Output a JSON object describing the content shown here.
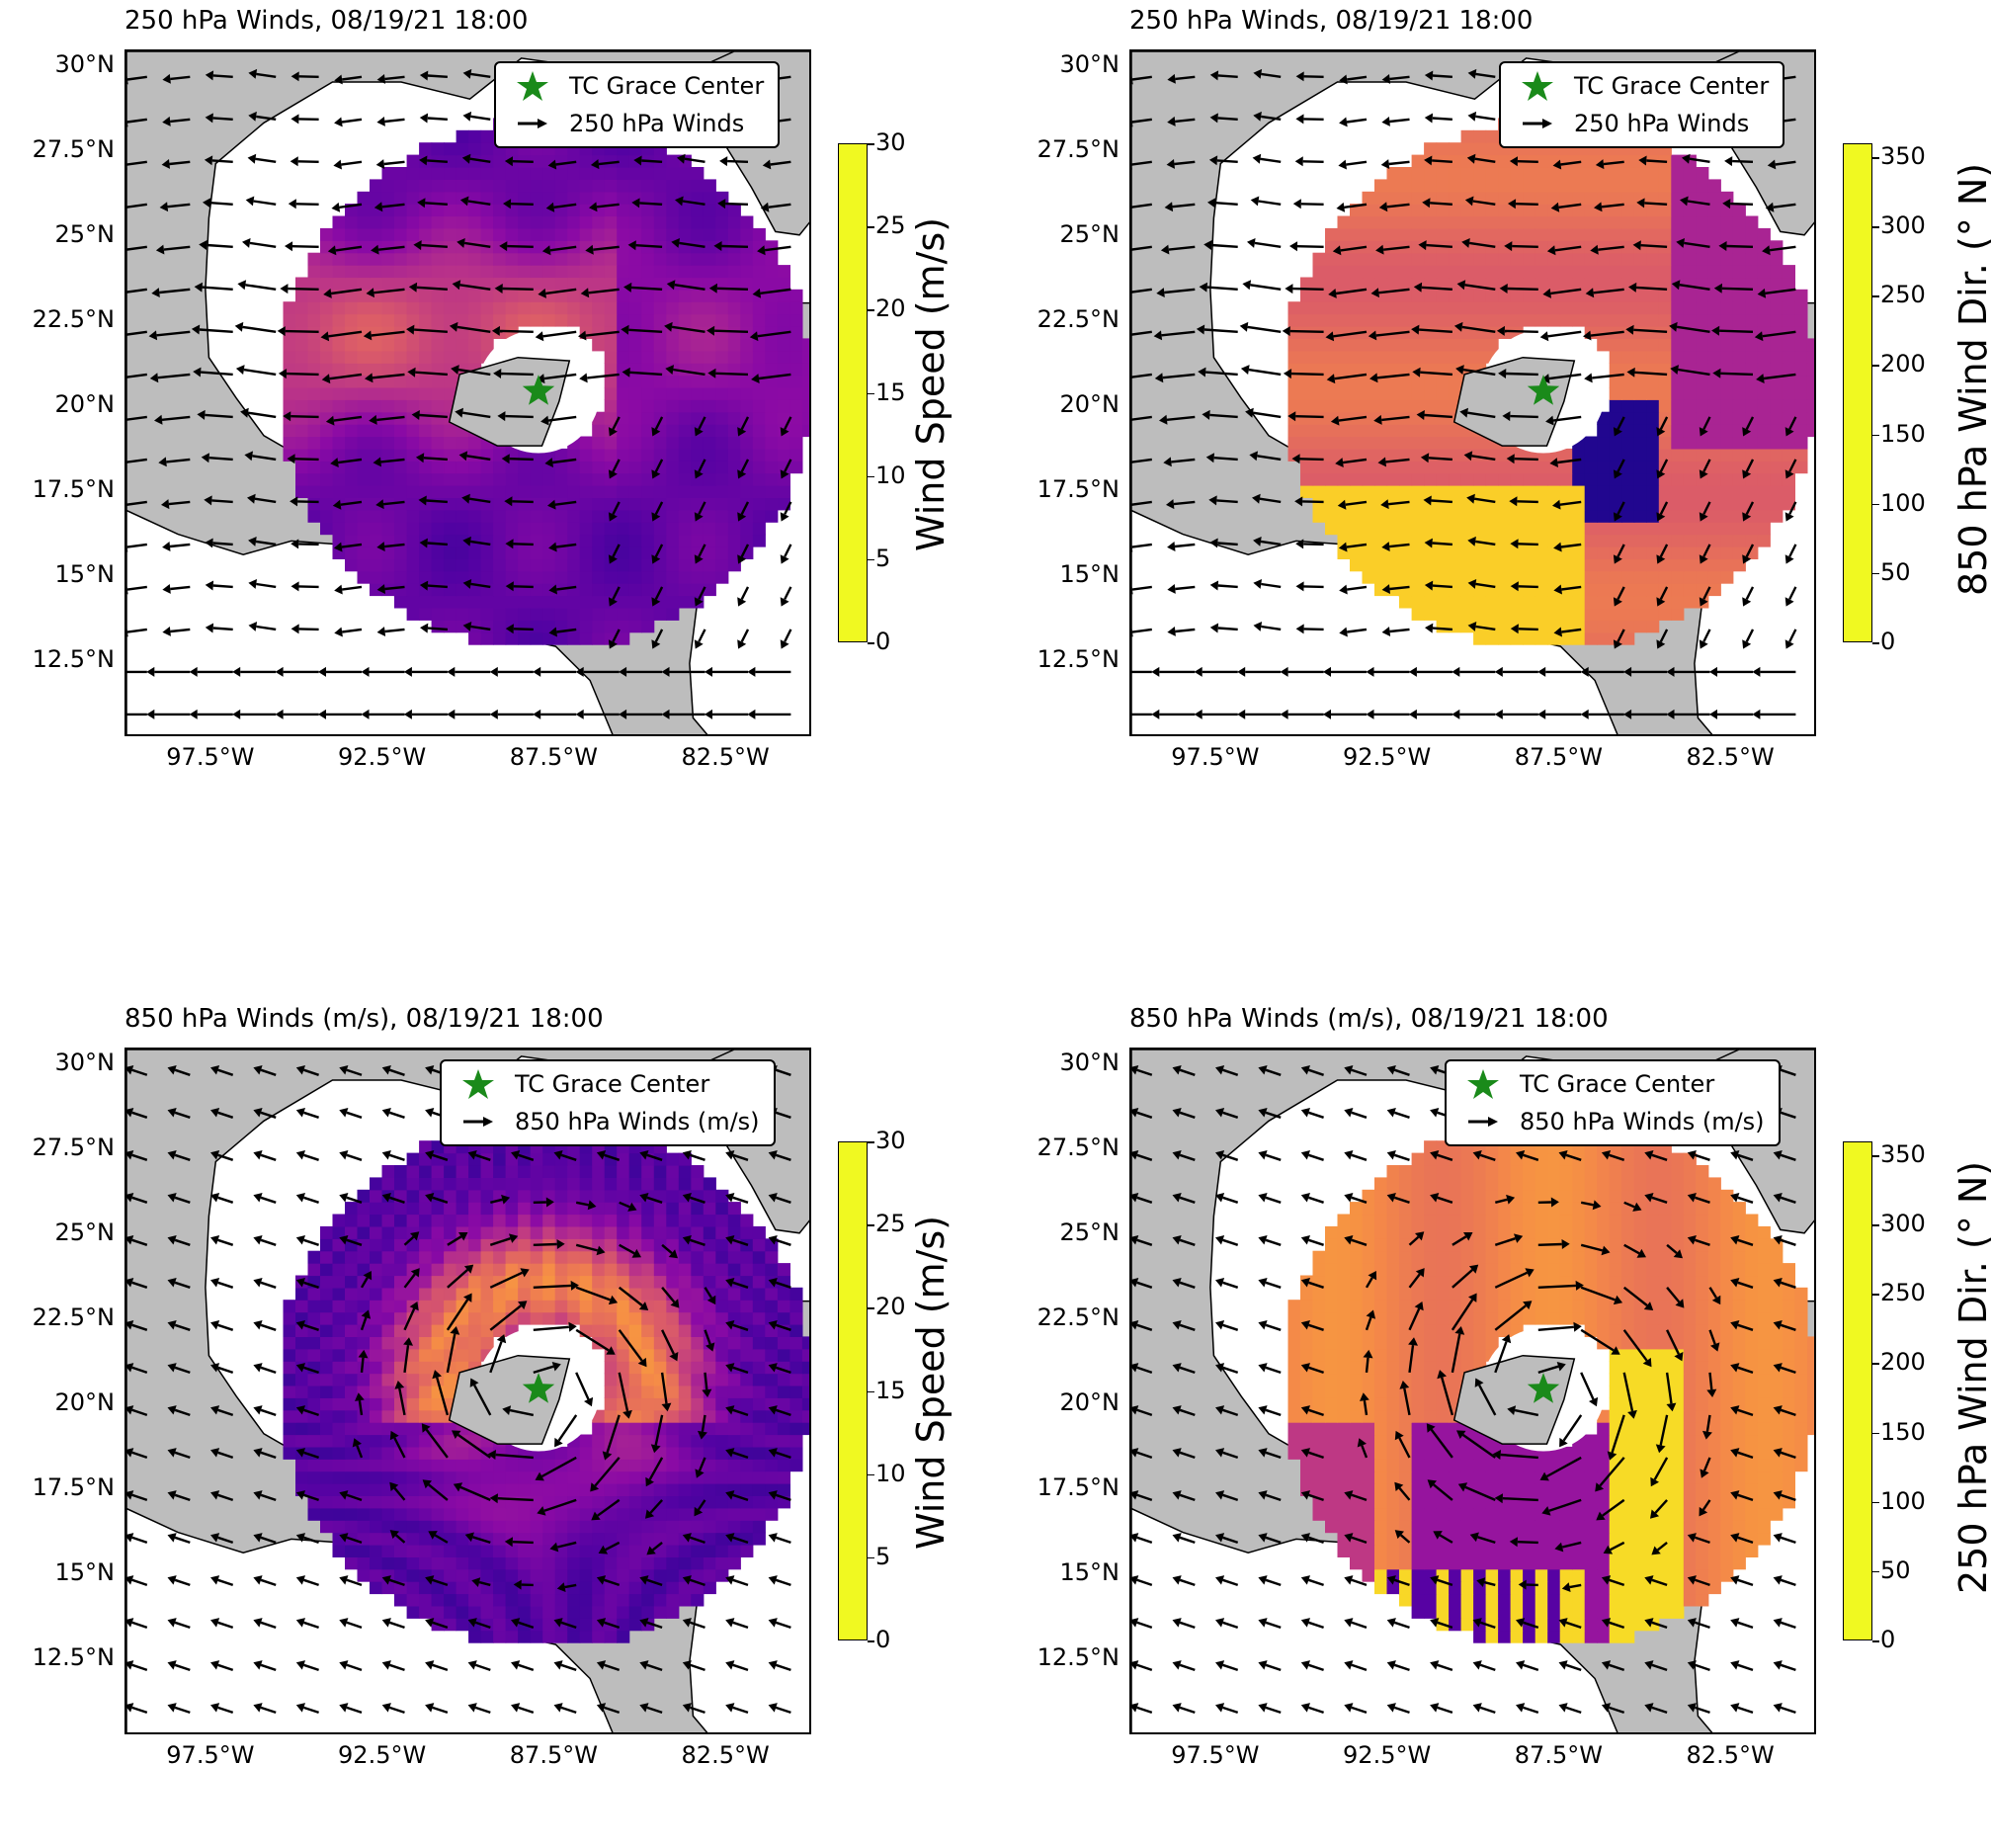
{
  "panels": [
    {
      "title": "250 hPa Winds, 08/19/21 18:00",
      "legend": [
        "TC Grace Center",
        "250 hPa Winds"
      ],
      "colorbar": {
        "label": "Wind Speed (m/s)",
        "ticks": [
          "0",
          "5",
          "10",
          "15",
          "20",
          "25",
          "30"
        ]
      }
    },
    {
      "title": "250 hPa Winds, 08/19/21 18:00",
      "legend": [
        "TC Grace Center",
        "250 hPa Winds"
      ],
      "colorbar": {
        "label": "850 hPa Wind Dir. (° N)",
        "ticks": [
          "0",
          "50",
          "100",
          "150",
          "200",
          "250",
          "300",
          "350"
        ]
      }
    },
    {
      "title": "850 hPa Winds (m/s), 08/19/21 18:00",
      "legend": [
        "TC Grace Center",
        "850 hPa Winds (m/s)"
      ],
      "colorbar": {
        "label": "Wind Speed (m/s)",
        "ticks": [
          "0",
          "5",
          "10",
          "15",
          "20",
          "25",
          "30"
        ]
      }
    },
    {
      "title": "850 hPa Winds (m/s), 08/19/21 18:00",
      "legend": [
        "TC Grace Center",
        "850 hPa Winds (m/s)"
      ],
      "colorbar": {
        "label": "250 hPa Wind Dir. (° N)",
        "ticks": [
          "0",
          "50",
          "100",
          "150",
          "200",
          "250",
          "300",
          "350"
        ]
      }
    }
  ],
  "axes": {
    "lat_ticks": [
      "30°N",
      "27.5°N",
      "25°N",
      "22.5°N",
      "20°N",
      "17.5°N",
      "15°N",
      "12.5°N"
    ],
    "lon_ticks": [
      "97.5°W",
      "92.5°W",
      "87.5°W",
      "82.5°W"
    ]
  },
  "chart_data": [
    {
      "type": "heatmap",
      "title": "250 hPa Winds, 08/19/21 18:00",
      "field": "250 hPa wind speed",
      "colorbar_label": "Wind Speed (m/s)",
      "clim": [
        0,
        30
      ],
      "colormap": "plasma",
      "xlim": [
        -100,
        -80
      ],
      "ylim": [
        10.3,
        30.5
      ],
      "center": {
        "lon": -88.0,
        "lat": 20.5
      },
      "legend": [
        "TC Grace Center",
        "250 hPa Winds"
      ],
      "legend_location": "upper right"
    },
    {
      "type": "heatmap",
      "title": "250 hPa Winds, 08/19/21 18:00",
      "field": "850 hPa wind direction",
      "colorbar_label": "850 hPa Wind Dir. (° N)",
      "clim": [
        0,
        360
      ],
      "colormap": "plasma",
      "xlim": [
        -100,
        -80
      ],
      "ylim": [
        10.3,
        30.5
      ],
      "center": {
        "lon": -88.0,
        "lat": 20.5
      },
      "legend": [
        "TC Grace Center",
        "250 hPa Winds"
      ],
      "legend_location": "upper right"
    },
    {
      "type": "heatmap",
      "title": "850 hPa Winds (m/s), 08/19/21 18:00",
      "field": "850 hPa wind speed",
      "colorbar_label": "Wind Speed (m/s)",
      "clim": [
        0,
        30
      ],
      "colormap": "plasma",
      "xlim": [
        -100,
        -80
      ],
      "ylim": [
        10.3,
        30.5
      ],
      "center": {
        "lon": -88.0,
        "lat": 20.5
      },
      "legend": [
        "TC Grace Center",
        "850 hPa Winds (m/s)"
      ],
      "legend_location": "upper right"
    },
    {
      "type": "heatmap",
      "title": "850 hPa Winds (m/s), 08/19/21 18:00",
      "field": "250 hPa wind direction",
      "colorbar_label": "250 hPa Wind Dir. (° N)",
      "clim": [
        0,
        360
      ],
      "colormap": "plasma",
      "xlim": [
        -100,
        -80
      ],
      "ylim": [
        10.3,
        30.5
      ],
      "center": {
        "lon": -88.0,
        "lat": 20.5
      },
      "legend": [
        "TC Grace Center",
        "850 hPa Winds (m/s)"
      ],
      "legend_location": "upper right"
    }
  ],
  "colors": {
    "land": "#bdbdbd",
    "star": "#1a8a1a",
    "plasma_low": "#0d0887",
    "plasma_mid": "#cc4778",
    "plasma_high": "#f0f921"
  }
}
